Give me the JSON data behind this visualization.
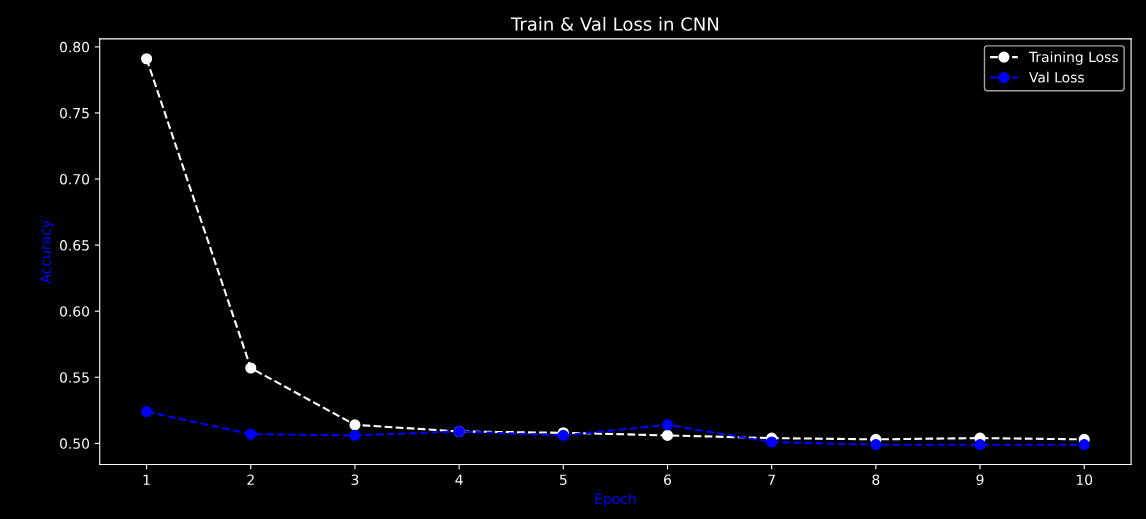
{
  "chart_data": {
    "type": "line",
    "title": "Train & Val Loss in CNN",
    "xlabel": "Epoch",
    "ylabel": "Accuracy",
    "x": [
      1,
      2,
      3,
      4,
      5,
      6,
      7,
      8,
      9,
      10
    ],
    "series": [
      {
        "name": "Training Loss",
        "color": "#ffffff",
        "values": [
          0.791,
          0.557,
          0.514,
          0.509,
          0.508,
          0.506,
          0.504,
          0.503,
          0.504,
          0.503
        ]
      },
      {
        "name": "Val Loss",
        "color": "#0000ff",
        "values": [
          0.524,
          0.507,
          0.506,
          0.509,
          0.506,
          0.514,
          0.501,
          0.499,
          0.499,
          0.499
        ]
      }
    ],
    "xlim": [
      0.55,
      10.45
    ],
    "xticks": [
      1,
      2,
      3,
      4,
      5,
      6,
      7,
      8,
      9,
      10
    ],
    "ylim": [
      0.484,
      0.806
    ],
    "yticks": [
      {
        "value": 0.5,
        "label": "0.50"
      },
      {
        "value": 0.55,
        "label": "0.55"
      },
      {
        "value": 0.6,
        "label": "0.60"
      },
      {
        "value": 0.65,
        "label": "0.65"
      },
      {
        "value": 0.7,
        "label": "0.70"
      },
      {
        "value": 0.75,
        "label": "0.75"
      },
      {
        "value": 0.8,
        "label": "0.80"
      }
    ],
    "marker": "circle",
    "line_style": "dashed",
    "grid": false,
    "legend": "top right"
  }
}
